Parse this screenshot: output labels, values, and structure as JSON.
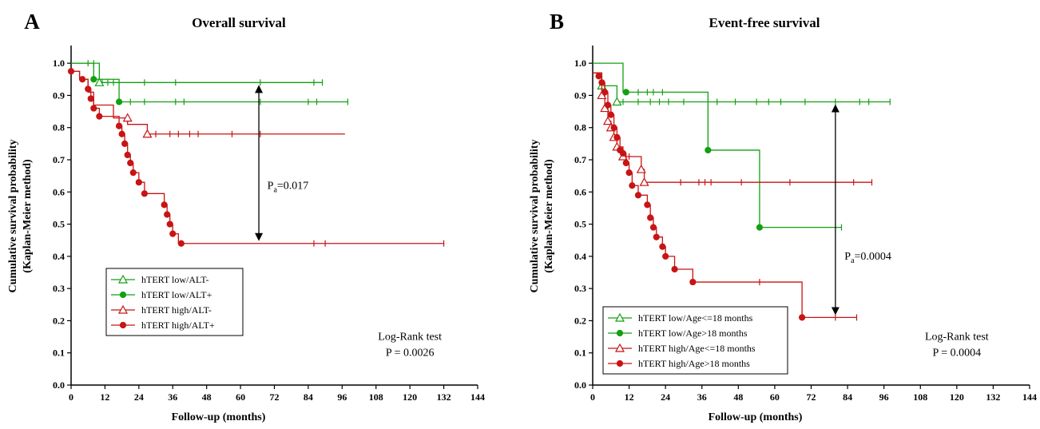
{
  "colors": {
    "green": "#12a012",
    "red": "#c81414",
    "axis": "#000000"
  },
  "chart_data": [
    {
      "panel": "A",
      "type": "line",
      "title": "Overall survival",
      "xlabel": "Follow-up (months)",
      "ylabel": "Cumulative survival probability (Kaplan-Meier method)",
      "ylabel_lines": [
        "Cumulative survival probability",
        "(Kaplan-Meier method)"
      ],
      "xlim": [
        0,
        144
      ],
      "ylim": [
        0,
        1.05
      ],
      "xticks": [
        "0",
        "12",
        "24",
        "36",
        "48",
        "60",
        "72",
        "84",
        "96",
        "108",
        "120",
        "132",
        "144"
      ],
      "yticks": [
        "0.0",
        "0.1",
        "0.2",
        "0.3",
        "0.4",
        "0.5",
        "0.6",
        "0.7",
        "0.8",
        "0.9",
        "1.0"
      ],
      "legend_position": "lower-left",
      "series": [
        {
          "name": "hTERT low/ALT-",
          "color": "green",
          "marker": "open-triangle",
          "steps": [
            [
              0,
              1.0
            ],
            [
              10,
              0.94
            ]
          ],
          "end_x": 89,
          "events": [
            [
              10,
              0.94
            ]
          ],
          "censored": [
            [
              6,
              1.0
            ],
            [
              8,
              1.0
            ],
            [
              11,
              0.94
            ],
            [
              13,
              0.94
            ],
            [
              15,
              0.94
            ],
            [
              26,
              0.94
            ],
            [
              37,
              0.94
            ],
            [
              67,
              0.94
            ],
            [
              86,
              0.94
            ],
            [
              89,
              0.94
            ]
          ]
        },
        {
          "name": "hTERT low/ALT+",
          "color": "green",
          "marker": "filled-circle",
          "steps": [
            [
              0,
              1.0
            ],
            [
              8,
              0.95
            ],
            [
              17,
              0.88
            ]
          ],
          "end_x": 98,
          "events": [
            [
              8,
              0.95
            ],
            [
              17,
              0.88
            ]
          ],
          "censored": [
            [
              21,
              0.88
            ],
            [
              26,
              0.88
            ],
            [
              37,
              0.88
            ],
            [
              40,
              0.88
            ],
            [
              67,
              0.88
            ],
            [
              84,
              0.88
            ],
            [
              87,
              0.88
            ],
            [
              98,
              0.88
            ]
          ]
        },
        {
          "name": "hTERT high/ALT-",
          "color": "red",
          "marker": "open-triangle",
          "steps": [
            [
              0,
              0.975
            ],
            [
              3,
              0.95
            ],
            [
              6,
              0.91
            ],
            [
              8,
              0.87
            ],
            [
              15,
              0.83
            ],
            [
              20,
              0.81
            ],
            [
              27,
              0.78
            ]
          ],
          "end_x": 97,
          "events": [
            [
              20,
              0.83
            ],
            [
              27,
              0.78
            ]
          ],
          "censored": [
            [
              30,
              0.78
            ],
            [
              35,
              0.78
            ],
            [
              38,
              0.78
            ],
            [
              42,
              0.78
            ],
            [
              45,
              0.78
            ],
            [
              57,
              0.78
            ],
            [
              67,
              0.78
            ]
          ]
        },
        {
          "name": "hTERT high/ALT+",
          "color": "red",
          "marker": "filled-circle",
          "steps": [
            [
              0,
              0.975
            ],
            [
              3,
              0.95
            ],
            [
              6,
              0.92
            ],
            [
              7,
              0.89
            ],
            [
              8,
              0.86
            ],
            [
              10,
              0.835
            ],
            [
              17,
              0.805
            ],
            [
              18,
              0.78
            ],
            [
              19,
              0.75
            ],
            [
              20,
              0.715
            ],
            [
              21,
              0.69
            ],
            [
              22,
              0.66
            ],
            [
              24,
              0.63
            ],
            [
              26,
              0.595
            ],
            [
              33,
              0.56
            ],
            [
              34,
              0.53
            ],
            [
              35,
              0.5
            ],
            [
              36,
              0.47
            ],
            [
              38,
              0.44
            ]
          ],
          "end_x": 132,
          "events": [
            [
              0,
              0.975
            ],
            [
              4,
              0.95
            ],
            [
              6,
              0.92
            ],
            [
              7,
              0.89
            ],
            [
              8,
              0.86
            ],
            [
              10,
              0.835
            ],
            [
              17,
              0.805
            ],
            [
              18,
              0.78
            ],
            [
              19,
              0.75
            ],
            [
              20,
              0.715
            ],
            [
              21,
              0.69
            ],
            [
              22,
              0.66
            ],
            [
              24,
              0.63
            ],
            [
              26,
              0.595
            ],
            [
              33,
              0.56
            ],
            [
              34,
              0.53
            ],
            [
              35,
              0.5
            ],
            [
              36,
              0.47
            ],
            [
              39,
              0.44
            ]
          ],
          "censored": [
            [
              86,
              0.44
            ],
            [
              90,
              0.44
            ],
            [
              132,
              0.44
            ]
          ]
        }
      ],
      "arrow": {
        "x": 66.5,
        "y1": 0.93,
        "y2": 0.45
      },
      "p_label": {
        "main": "P",
        "sub": "a",
        "value": "=0.017",
        "x": 69.5,
        "y": 0.61
      },
      "test_label": {
        "line1": "Log-Rank test",
        "line2": "P = 0.0026",
        "x": 120,
        "y1": 0.14,
        "y2": 0.09
      }
    },
    {
      "panel": "B",
      "type": "line",
      "title": "Event-free survival",
      "xlabel": "Follow-up (months)",
      "ylabel": "Cumulative survival probability (Kaplan-Meier method)",
      "ylabel_lines": [
        "Cumulative survival probability",
        "(Kaplan-Meier method)"
      ],
      "xlim": [
        0,
        144
      ],
      "ylim": [
        0,
        1.05
      ],
      "xticks": [
        "0",
        "12",
        "24",
        "36",
        "48",
        "60",
        "72",
        "84",
        "96",
        "108",
        "120",
        "132",
        "144"
      ],
      "yticks": [
        "0.0",
        "0.1",
        "0.2",
        "0.3",
        "0.4",
        "0.5",
        "0.6",
        "0.7",
        "0.8",
        "0.9",
        "1.0"
      ],
      "legend_position": "lower-left",
      "series": [
        {
          "name": "hTERT low/Age<=18 months",
          "color": "green",
          "marker": "open-triangle",
          "steps": [
            [
              0,
              0.97
            ],
            [
              3,
              0.93
            ],
            [
              8,
              0.88
            ]
          ],
          "end_x": 98,
          "events": [
            [
              3,
              0.93
            ],
            [
              8,
              0.88
            ]
          ],
          "censored": [
            [
              10,
              0.88
            ],
            [
              15,
              0.88
            ],
            [
              19,
              0.88
            ],
            [
              22,
              0.88
            ],
            [
              25,
              0.88
            ],
            [
              30,
              0.88
            ],
            [
              41,
              0.88
            ],
            [
              47,
              0.88
            ],
            [
              54,
              0.88
            ],
            [
              58,
              0.88
            ],
            [
              62,
              0.88
            ],
            [
              70,
              0.88
            ],
            [
              80,
              0.88
            ],
            [
              88,
              0.88
            ],
            [
              91,
              0.88
            ],
            [
              98,
              0.88
            ]
          ]
        },
        {
          "name": "hTERT low/Age>18 months",
          "color": "green",
          "marker": "filled-circle",
          "steps": [
            [
              0,
              1.0
            ],
            [
              10,
              0.91
            ],
            [
              38,
              0.73
            ],
            [
              55,
              0.49
            ]
          ],
          "end_x": 82,
          "events": [
            [
              11,
              0.91
            ],
            [
              38,
              0.73
            ],
            [
              55,
              0.49
            ]
          ],
          "censored": [
            [
              15,
              0.91
            ],
            [
              18,
              0.91
            ],
            [
              20,
              0.91
            ],
            [
              23,
              0.91
            ],
            [
              82,
              0.49
            ]
          ]
        },
        {
          "name": "hTERT high/Age<=18 months",
          "color": "red",
          "marker": "open-triangle",
          "steps": [
            [
              0,
              0.97
            ],
            [
              3,
              0.9
            ],
            [
              4,
              0.86
            ],
            [
              5,
              0.82
            ],
            [
              6,
              0.8
            ],
            [
              7,
              0.77
            ],
            [
              8,
              0.74
            ],
            [
              10,
              0.71
            ],
            [
              16,
              0.67
            ],
            [
              17,
              0.63
            ]
          ],
          "end_x": 92,
          "events": [
            [
              3,
              0.9
            ],
            [
              4,
              0.86
            ],
            [
              5,
              0.82
            ],
            [
              6,
              0.8
            ],
            [
              7,
              0.77
            ],
            [
              8,
              0.74
            ],
            [
              10,
              0.71
            ],
            [
              16,
              0.67
            ],
            [
              17,
              0.63
            ]
          ],
          "censored": [
            [
              12,
              0.71
            ],
            [
              29,
              0.63
            ],
            [
              35,
              0.63
            ],
            [
              37,
              0.63
            ],
            [
              39,
              0.63
            ],
            [
              49,
              0.63
            ],
            [
              65,
              0.63
            ],
            [
              86,
              0.63
            ],
            [
              92,
              0.63
            ]
          ]
        },
        {
          "name": "hTERT high/Age>18 months",
          "color": "red",
          "marker": "filled-circle",
          "steps": [
            [
              0,
              0.97
            ],
            [
              2,
              0.96
            ],
            [
              3,
              0.94
            ],
            [
              4,
              0.91
            ],
            [
              5,
              0.87
            ],
            [
              6,
              0.84
            ],
            [
              7,
              0.8
            ],
            [
              8,
              0.77
            ],
            [
              9,
              0.73
            ],
            [
              10,
              0.72
            ],
            [
              11,
              0.69
            ],
            [
              12,
              0.66
            ],
            [
              13,
              0.62
            ],
            [
              15,
              0.59
            ],
            [
              18,
              0.56
            ],
            [
              19,
              0.52
            ],
            [
              20,
              0.49
            ],
            [
              21,
              0.46
            ],
            [
              23,
              0.43
            ],
            [
              24,
              0.4
            ],
            [
              27,
              0.36
            ],
            [
              33,
              0.32
            ],
            [
              69,
              0.21
            ]
          ],
          "end_x": 87,
          "events": [
            [
              2,
              0.96
            ],
            [
              3,
              0.94
            ],
            [
              4,
              0.91
            ],
            [
              5,
              0.87
            ],
            [
              6,
              0.84
            ],
            [
              7,
              0.8
            ],
            [
              8,
              0.77
            ],
            [
              9,
              0.73
            ],
            [
              10,
              0.72
            ],
            [
              11,
              0.69
            ],
            [
              12,
              0.66
            ],
            [
              13,
              0.62
            ],
            [
              15,
              0.59
            ],
            [
              18,
              0.56
            ],
            [
              19,
              0.52
            ],
            [
              20,
              0.49
            ],
            [
              21,
              0.46
            ],
            [
              23,
              0.43
            ],
            [
              24,
              0.4
            ],
            [
              27,
              0.36
            ],
            [
              33,
              0.32
            ],
            [
              69,
              0.21
            ]
          ],
          "censored": [
            [
              55,
              0.32
            ],
            [
              80,
              0.21
            ],
            [
              87,
              0.21
            ]
          ]
        }
      ],
      "arrow": {
        "x": 80,
        "y1": 0.87,
        "y2": 0.22
      },
      "p_label": {
        "main": "P",
        "sub": "a",
        "value": "=0.0004",
        "x": 83,
        "y": 0.39
      },
      "test_label": {
        "line1": "Log-Rank test",
        "line2": "P = 0.0004",
        "x": 120,
        "y1": 0.14,
        "y2": 0.09
      }
    }
  ]
}
